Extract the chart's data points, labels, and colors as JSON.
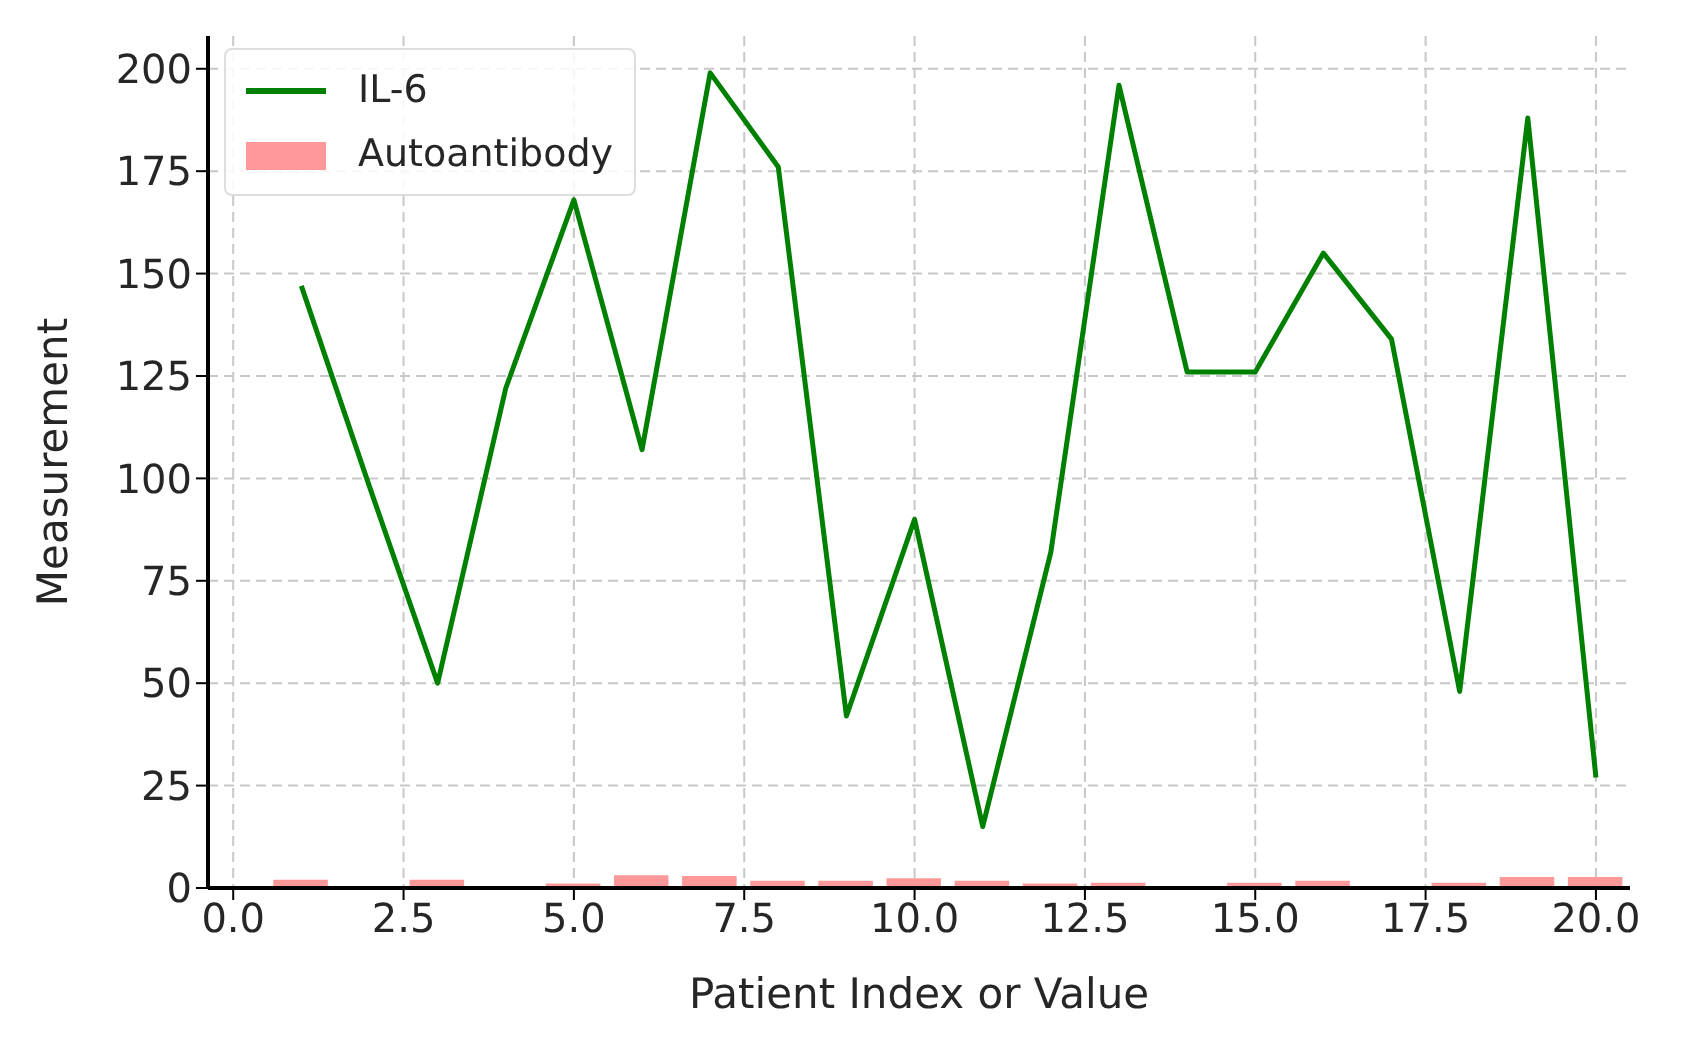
{
  "chart_data": {
    "type": "line",
    "xlabel": "Patient Index or Value",
    "ylabel": "Measurement",
    "x": [
      1,
      2,
      3,
      4,
      5,
      6,
      7,
      8,
      9,
      10,
      11,
      12,
      13,
      14,
      15,
      16,
      17,
      18,
      19,
      20
    ],
    "series": [
      {
        "name": "IL-6",
        "color": "#008000",
        "values": [
          147,
          98,
          50,
          122,
          168,
          107,
          199,
          176,
          42,
          90,
          15,
          82,
          196,
          126,
          126,
          155,
          134,
          48,
          188,
          27
        ]
      },
      {
        "name": "Autoantibody",
        "type": "bar",
        "color": "#ff9999",
        "values": [
          2.0,
          null,
          2.0,
          null,
          1.1,
          3.1,
          2.9,
          1.8,
          1.8,
          2.4,
          1.8,
          1.1,
          1.3,
          null,
          1.3,
          1.8,
          null,
          1.3,
          2.7,
          2.7
        ]
      }
    ],
    "xlim": [
      -0.37,
      20.5
    ],
    "xticks": [
      {
        "value": 0,
        "label": "0.0"
      },
      {
        "value": 2.5,
        "label": "2.5"
      },
      {
        "value": 5,
        "label": "5.0"
      },
      {
        "value": 7.5,
        "label": "7.5"
      },
      {
        "value": 10,
        "label": "10.0"
      },
      {
        "value": 12.5,
        "label": "12.5"
      },
      {
        "value": 15,
        "label": "15.0"
      },
      {
        "value": 17.5,
        "label": "17.5"
      },
      {
        "value": 20,
        "label": "20.0"
      }
    ],
    "ylim": [
      0,
      208
    ],
    "yticks": [
      0,
      25,
      50,
      75,
      100,
      125,
      150,
      175,
      200
    ],
    "grid": true,
    "legend": "top left",
    "line_style": "solid",
    "marker": "none"
  }
}
